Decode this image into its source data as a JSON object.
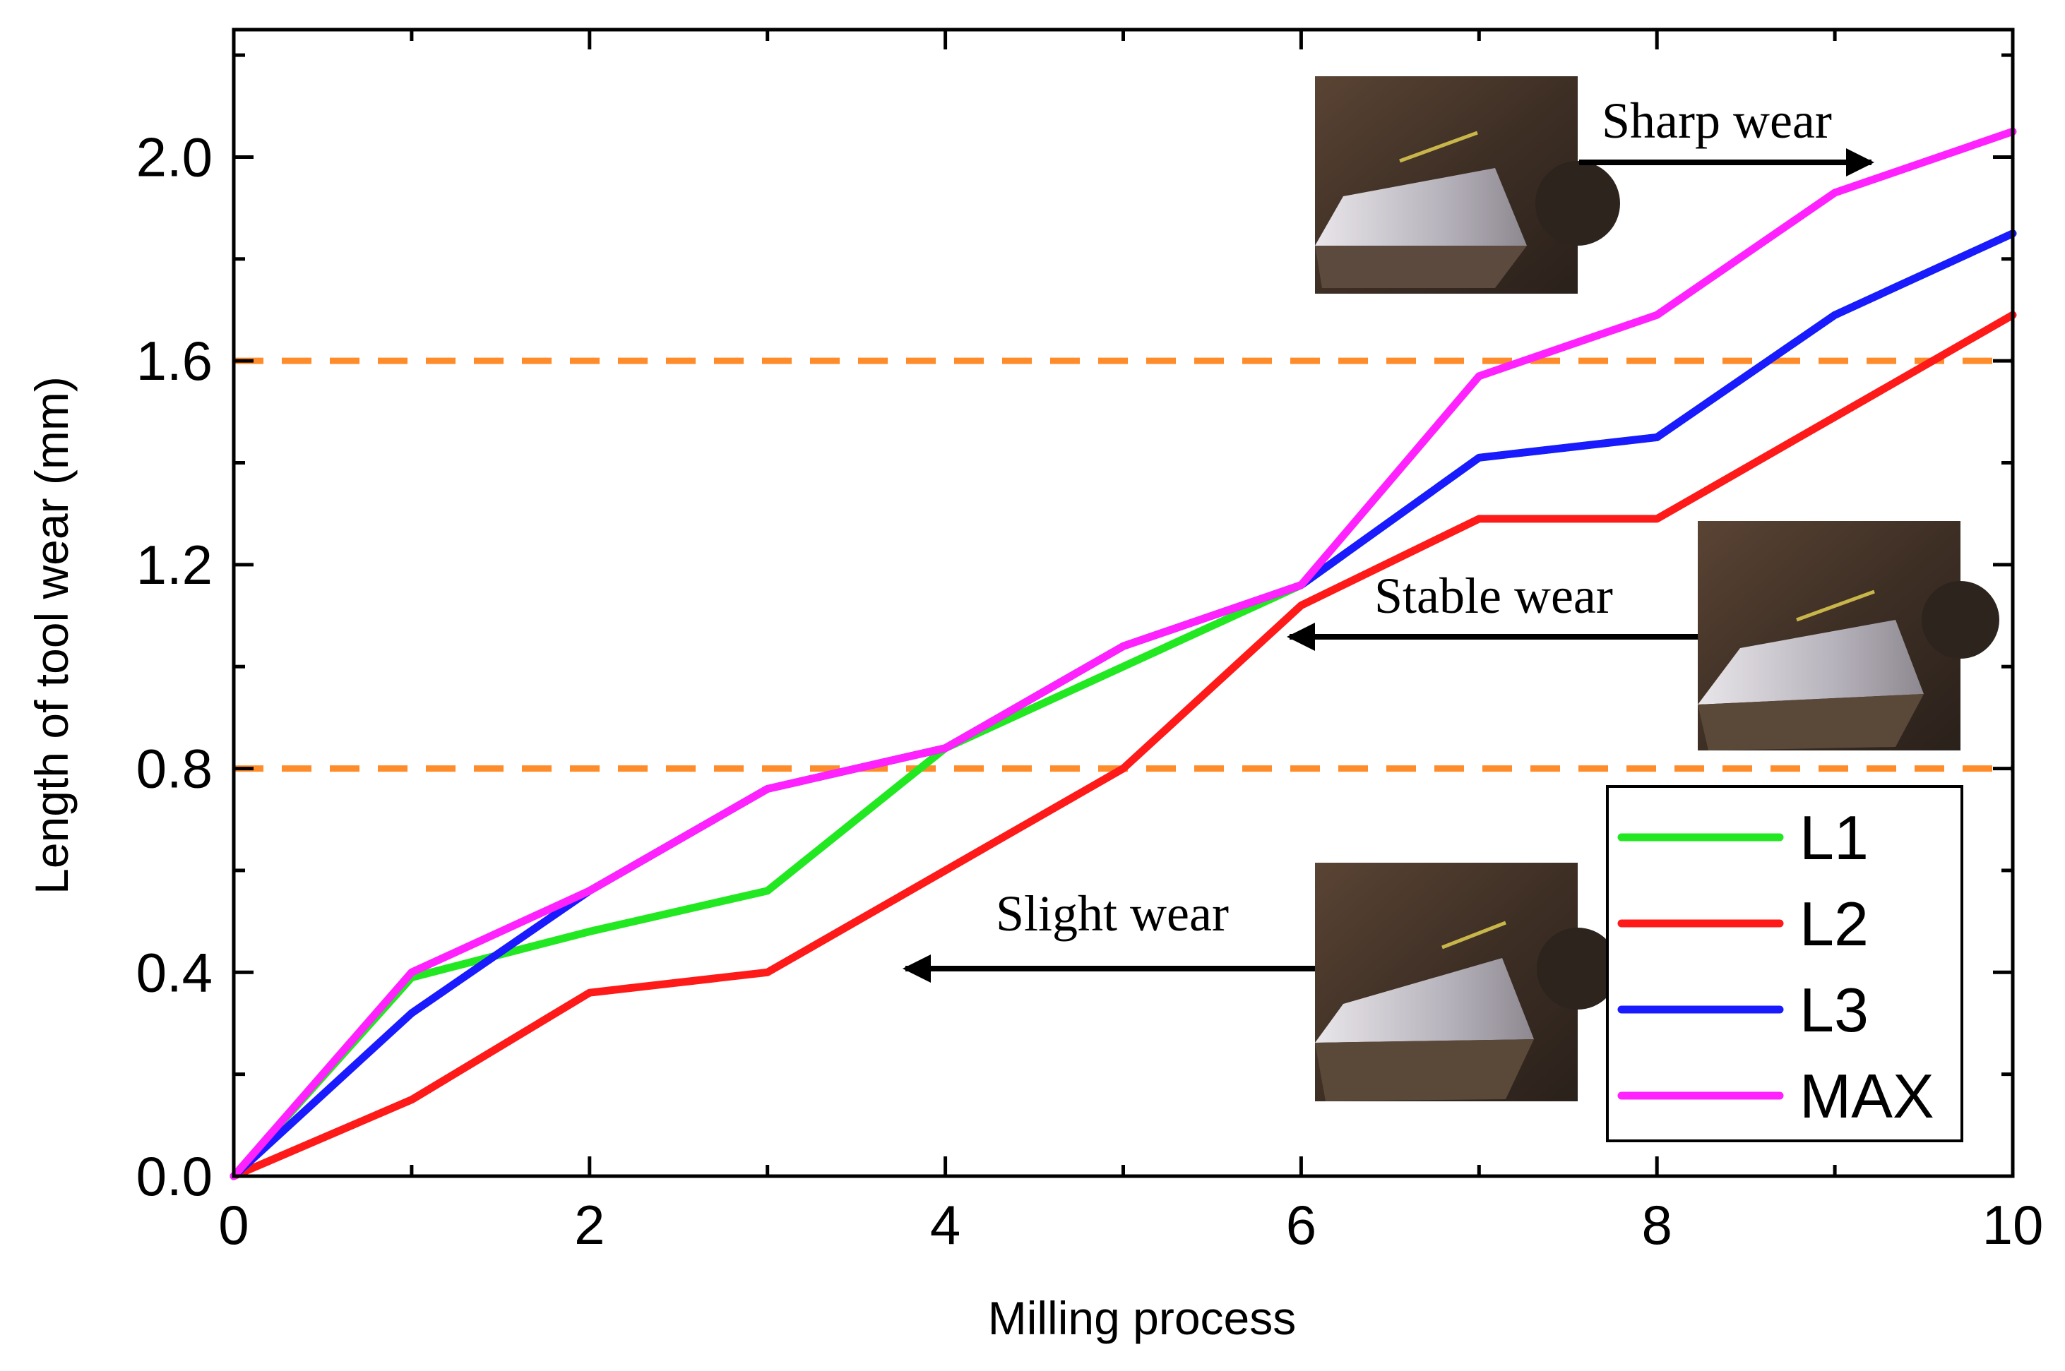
{
  "chart_data": {
    "type": "line",
    "title": "",
    "xlabel": "Milling process",
    "ylabel": "Length of tool wear (mm)",
    "xlim": [
      0,
      10
    ],
    "ylim": [
      0,
      2.25
    ],
    "xticks": [
      0,
      2,
      4,
      6,
      8,
      10
    ],
    "xtick_labels": [
      "0",
      "2",
      "4",
      "6",
      "8",
      "10"
    ],
    "yticks": [
      0,
      0.4,
      0.8,
      1.2,
      1.6,
      2.0
    ],
    "ytick_labels": [
      "0.0",
      "0.4",
      "0.8",
      "1.2",
      "1.6",
      "2.0"
    ],
    "x": [
      0,
      1,
      2,
      3,
      4,
      5,
      6,
      7,
      8,
      9,
      10
    ],
    "series": [
      {
        "name": "L1",
        "color": "#22e822",
        "values": [
          0,
          0.39,
          0.48,
          0.56,
          0.84,
          1.0,
          1.16,
          1.41,
          1.45,
          1.69,
          1.85
        ]
      },
      {
        "name": "L2",
        "color": "#ff1a1a",
        "values": [
          0,
          0.15,
          0.36,
          0.4,
          0.6,
          0.8,
          1.12,
          1.29,
          1.29,
          1.49,
          1.69
        ]
      },
      {
        "name": "L3",
        "color": "#1a1aff",
        "values": [
          0,
          0.32,
          0.56,
          0.76,
          0.84,
          1.04,
          1.16,
          1.41,
          1.45,
          1.69,
          1.85
        ]
      },
      {
        "name": "MAX",
        "color": "#ff22ff",
        "values": [
          0,
          0.4,
          0.56,
          0.76,
          0.84,
          1.04,
          1.16,
          1.57,
          1.69,
          1.93,
          2.05
        ]
      }
    ],
    "thresholds": [
      {
        "y": 0.8,
        "color": "#ff8c2a"
      },
      {
        "y": 1.6,
        "color": "#ff8c2a"
      }
    ],
    "annotations": [
      {
        "text": "Sharp wear",
        "arrow": "right"
      },
      {
        "text": "Stable wear",
        "arrow": "left"
      },
      {
        "text": "Slight wear",
        "arrow": "left"
      }
    ],
    "legend": {
      "position": "bottom-right",
      "entries": [
        "L1",
        "L2",
        "L3",
        "MAX"
      ]
    },
    "grid": false
  }
}
